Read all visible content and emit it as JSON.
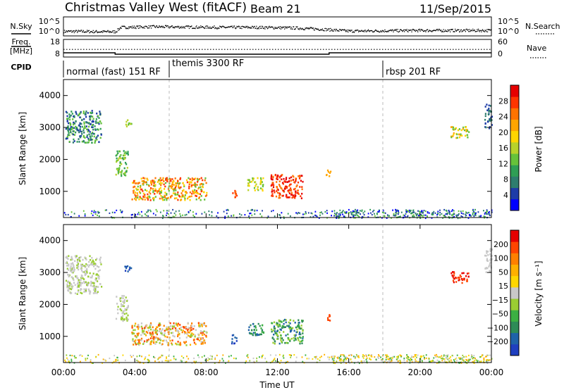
{
  "header": {
    "title": "Christmas Valley West (fitACF)",
    "beam": "Beam 21",
    "date": "11/Sep/2015"
  },
  "panel_labels": {
    "nsky": "N.Sky",
    "freq_line1": "Freq.",
    "freq_line2": "[MHz]",
    "cpid": "CPID",
    "nsearch": "N.Search",
    "nave": "Nave"
  },
  "noise_axis_ticks": [
    "10^5",
    "10^0"
  ],
  "freq_axis_ticks": [
    "18",
    "8"
  ],
  "nave_axis_ticks": [
    "60",
    "0"
  ],
  "cpid_segments": [
    {
      "label": "normal (fast) 151 RF",
      "start_hr": 0
    },
    {
      "label": "themis 3300 RF",
      "start_hr": 6
    },
    {
      "label": "rbsp 201 RF",
      "start_hr": 18
    }
  ],
  "freq_trace": {
    "hours": [
      0,
      2.9,
      2.9,
      14.9,
      14.9,
      24
    ],
    "mhz": [
      10.4,
      10.4,
      9.6,
      9.6,
      10.4,
      10.4
    ],
    "nave_level": 26
  },
  "noise_trace": {
    "hours": [
      0,
      1,
      2,
      2.9,
      3.2,
      5,
      7,
      9,
      11,
      13,
      14.5,
      16,
      18,
      20,
      22,
      24
    ],
    "log_sky": [
      0.9,
      0.9,
      0.8,
      0.8,
      2.2,
      2.4,
      2.3,
      2.2,
      2.2,
      2.0,
      1.6,
      1.0,
      1.1,
      1.2,
      1.2,
      1.2
    ]
  },
  "chart_data": [
    {
      "type": "heatmap",
      "name": "power",
      "xlabel": "",
      "ylabel": "Slant Range [km]",
      "x_ticks": [
        "00:00",
        "04:00",
        "08:00",
        "12:00",
        "16:00",
        "20:00",
        "00:00"
      ],
      "y_ticks": [
        "1000",
        "2000",
        "3000",
        "4000"
      ],
      "xlim_hours": [
        0,
        24
      ],
      "ylim_km": [
        180,
        4500
      ],
      "colorbar": {
        "label": "Power [dB]",
        "ticks": [
          "4",
          "8",
          "12",
          "16",
          "20",
          "24",
          "28"
        ],
        "colors": [
          "#0000ff",
          "#1e3ca8",
          "#2e7d6e",
          "#2f9e55",
          "#66c23a",
          "#b8d22a",
          "#ffd500",
          "#ffa500",
          "#ff7300",
          "#ff3500",
          "#e60000"
        ]
      },
      "echo_regions": [
        {
          "t0": 0.1,
          "t1": 2.1,
          "r0": 2550,
          "r1": 3550,
          "color_idx": [
            2,
            3,
            4,
            1
          ]
        },
        {
          "t0": 2.9,
          "t1": 3.6,
          "r0": 1500,
          "r1": 2300,
          "color_idx": [
            4,
            5,
            3
          ]
        },
        {
          "t0": 3.4,
          "t1": 3.8,
          "r0": 3050,
          "r1": 3300,
          "color_idx": [
            4,
            5
          ]
        },
        {
          "t0": 3.8,
          "t1": 8.0,
          "r0": 750,
          "r1": 1450,
          "color_idx": [
            6,
            7,
            8,
            9,
            4
          ]
        },
        {
          "t0": 9.4,
          "t1": 9.7,
          "r0": 800,
          "r1": 1100,
          "color_idx": [
            8,
            9
          ]
        },
        {
          "t0": 10.3,
          "t1": 11.2,
          "r0": 1050,
          "r1": 1450,
          "color_idx": [
            4,
            5,
            6
          ]
        },
        {
          "t0": 11.6,
          "t1": 13.4,
          "r0": 800,
          "r1": 1550,
          "color_idx": [
            9,
            10,
            8
          ]
        },
        {
          "t0": 14.7,
          "t1": 15.0,
          "r0": 1500,
          "r1": 1700,
          "color_idx": [
            7
          ]
        },
        {
          "t0": 21.7,
          "t1": 22.7,
          "r0": 2700,
          "r1": 3050,
          "color_idx": [
            7,
            6,
            4
          ]
        },
        {
          "t0": 23.6,
          "t1": 24,
          "r0": 3000,
          "r1": 3800,
          "color_idx": [
            2,
            1
          ]
        }
      ],
      "ground_scatter": {
        "t0": 0,
        "t1": 24,
        "r0": 180,
        "r1": 450
      }
    },
    {
      "type": "heatmap",
      "name": "velocity",
      "xlabel": "Time UT",
      "ylabel": "Slant Range [km]",
      "x_ticks": [
        "00:00",
        "04:00",
        "08:00",
        "12:00",
        "16:00",
        "20:00",
        "00:00"
      ],
      "y_ticks": [
        "1000",
        "2000",
        "3000",
        "4000"
      ],
      "xlim_hours": [
        0,
        24
      ],
      "ylim_km": [
        180,
        4500
      ],
      "colorbar": {
        "label": "Velocity [m s⁻¹]",
        "ticks": [
          "200",
          "100",
          "50",
          "15",
          "−15",
          "−50",
          "−100",
          "−200"
        ],
        "colors": [
          "#1f3fbf",
          "#1f62a8",
          "#2e8b57",
          "#3cb043",
          "#9acd32",
          "#c8c8c8",
          "#ffd700",
          "#ffb000",
          "#ff8000",
          "#ff4500",
          "#e60000"
        ]
      },
      "echo_regions": [
        {
          "t0": 0.1,
          "t1": 2.1,
          "r0": 2350,
          "r1": 3550,
          "color_idx": [
            5,
            5,
            4
          ]
        },
        {
          "t0": 2.9,
          "t1": 3.6,
          "r0": 1500,
          "r1": 2300,
          "color_idx": [
            5,
            4
          ]
        },
        {
          "t0": 3.4,
          "t1": 3.8,
          "r0": 3050,
          "r1": 3300,
          "color_idx": [
            0,
            1
          ]
        },
        {
          "t0": 3.8,
          "t1": 8.0,
          "r0": 750,
          "r1": 1450,
          "color_idx": [
            8,
            9,
            5,
            4,
            7
          ]
        },
        {
          "t0": 9.4,
          "t1": 9.7,
          "r0": 800,
          "r1": 1100,
          "color_idx": [
            0,
            1
          ]
        },
        {
          "t0": 10.3,
          "t1": 11.2,
          "r0": 1050,
          "r1": 1450,
          "color_idx": [
            1,
            2,
            3
          ]
        },
        {
          "t0": 11.6,
          "t1": 13.4,
          "r0": 800,
          "r1": 1550,
          "color_idx": [
            2,
            1,
            3,
            4
          ]
        },
        {
          "t0": 14.7,
          "t1": 15.0,
          "r0": 1500,
          "r1": 1700,
          "color_idx": [
            9
          ]
        },
        {
          "t0": 21.7,
          "t1": 22.7,
          "r0": 2700,
          "r1": 3050,
          "color_idx": [
            9,
            10
          ]
        },
        {
          "t0": 23.6,
          "t1": 24,
          "r0": 3000,
          "r1": 3800,
          "color_idx": [
            5
          ]
        }
      ],
      "ground_scatter": {
        "t0": 0,
        "t1": 24,
        "r0": 180,
        "r1": 450
      }
    }
  ]
}
